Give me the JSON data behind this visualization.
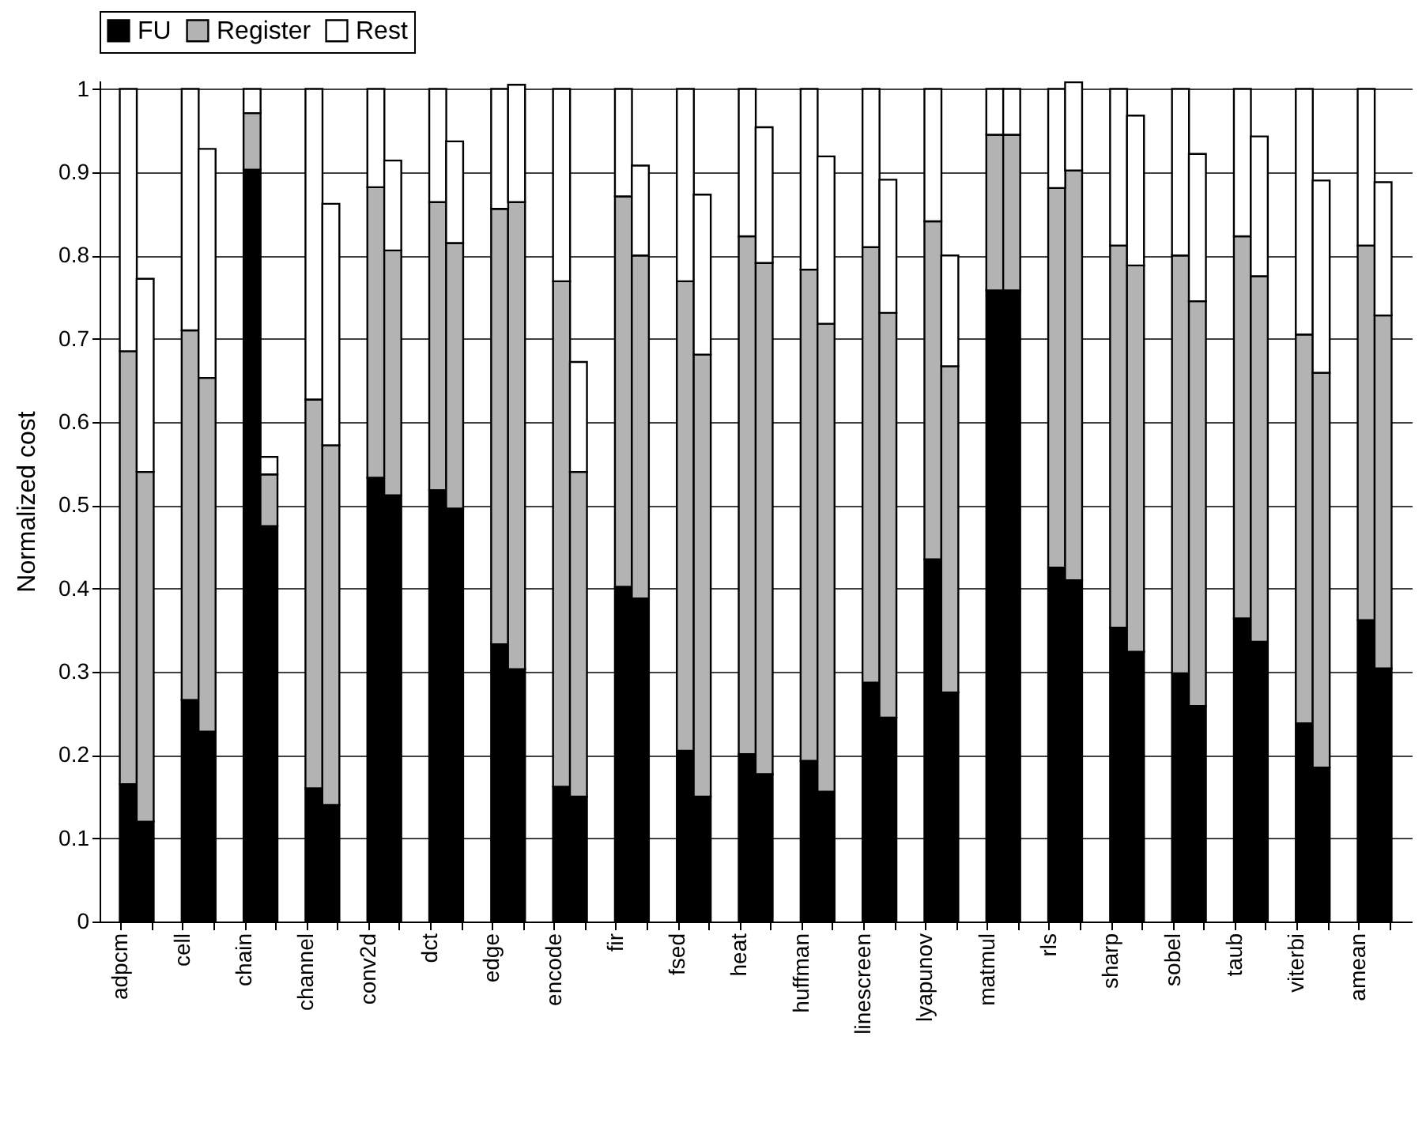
{
  "chart_data": {
    "type": "bar",
    "stacked": true,
    "ylabel": "Normalized cost",
    "categories": [
      "adpcm",
      null,
      "cell",
      null,
      "chain",
      null,
      "channel",
      null,
      "conv2d",
      null,
      "dct",
      null,
      "edge",
      null,
      "encode",
      null,
      "fir",
      null,
      "fsed",
      null,
      "heat",
      null,
      "huffman",
      null,
      "linescreen",
      null,
      "lyapunov",
      null,
      "matmul",
      null,
      "rls",
      null,
      "sharp",
      null,
      "sobel",
      null,
      "taub",
      null,
      "viterbi",
      null,
      "amean",
      null
    ],
    "series": [
      {
        "name": "FU",
        "color": "#000000",
        "values": [
          0.165,
          0.12,
          0.266,
          0.228,
          0.903,
          0.475,
          0.16,
          0.14,
          0.533,
          0.512,
          0.518,
          0.496,
          0.333,
          0.303,
          0.162,
          0.15,
          0.402,
          0.388,
          0.205,
          0.15,
          0.201,
          0.177,
          0.193,
          0.156,
          0.287,
          0.245,
          0.435,
          0.275,
          0.758,
          0.758,
          0.425,
          0.41,
          0.353,
          0.324,
          0.298,
          0.259,
          0.364,
          0.336,
          0.238,
          0.185,
          0.362,
          0.304
        ]
      },
      {
        "name": "Register",
        "color": "#b3b3b3",
        "values": [
          0.52,
          0.42,
          0.444,
          0.425,
          0.068,
          0.062,
          0.467,
          0.432,
          0.349,
          0.294,
          0.346,
          0.319,
          0.523,
          0.561,
          0.607,
          0.39,
          0.469,
          0.412,
          0.564,
          0.531,
          0.622,
          0.614,
          0.59,
          0.562,
          0.523,
          0.486,
          0.406,
          0.392,
          0.187,
          0.187,
          0.456,
          0.492,
          0.459,
          0.464,
          0.502,
          0.486,
          0.459,
          0.439,
          0.467,
          0.474,
          0.45,
          0.424
        ]
      },
      {
        "name": "Rest",
        "color": "#ffffff",
        "values": [
          0.315,
          0.232,
          0.29,
          0.275,
          0.029,
          0.021,
          0.373,
          0.29,
          0.118,
          0.108,
          0.136,
          0.122,
          0.144,
          0.141,
          0.231,
          0.132,
          0.129,
          0.108,
          0.231,
          0.192,
          0.177,
          0.163,
          0.217,
          0.201,
          0.19,
          0.16,
          0.159,
          0.133,
          0.055,
          0.055,
          0.119,
          0.106,
          0.188,
          0.18,
          0.2,
          0.177,
          0.177,
          0.168,
          0.295,
          0.231,
          0.188,
          0.16
        ]
      }
    ],
    "ylim": [
      0,
      1.01
    ],
    "yticks": [
      0,
      0.1,
      0.2,
      0.3,
      0.4,
      0.5,
      0.6,
      0.7,
      0.8,
      0.9,
      1
    ],
    "grid": "y",
    "legend": "top"
  }
}
